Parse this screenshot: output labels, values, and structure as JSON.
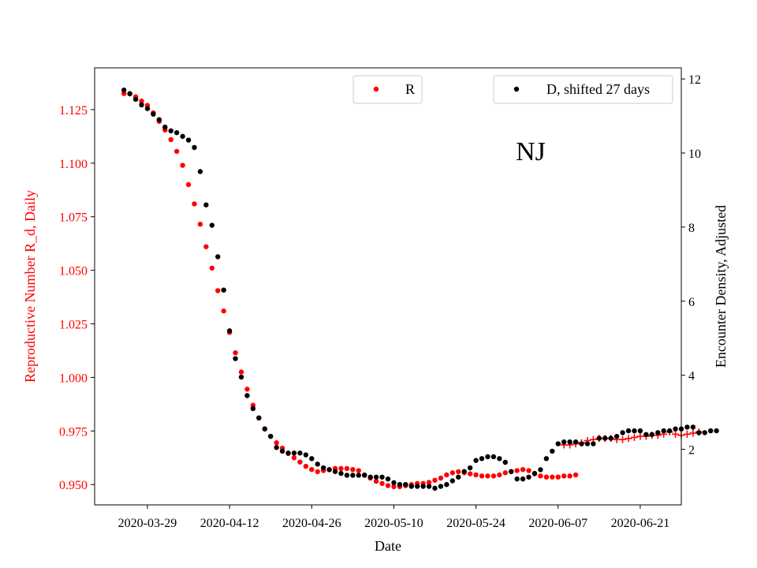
{
  "chart_data": {
    "type": "scatter",
    "annotation": "NJ",
    "xlabel": "Date",
    "ylabel_left": "Reproductive Number R_d, Daily",
    "ylabel_right": "Encounter Density, Adjusted",
    "x_tick_labels": [
      "2020-03-29",
      "2020-04-12",
      "2020-04-26",
      "2020-05-10",
      "2020-05-24",
      "2020-06-07",
      "2020-06-21"
    ],
    "x_range": [
      "2020-03-20",
      "2020-06-28"
    ],
    "y_left_range": [
      0.9405,
      1.1445
    ],
    "y_left_ticks": [
      "0.950",
      "0.975",
      "1.000",
      "1.025",
      "1.050",
      "1.075",
      "1.100",
      "1.125"
    ],
    "y_right_range": [
      0.5,
      12.3
    ],
    "y_right_ticks": [
      "2",
      "4",
      "6",
      "8",
      "10",
      "12"
    ],
    "grid": false,
    "colors": {
      "R": "#ff0000",
      "D": "#000000",
      "left_axis": "#ff0000",
      "right_axis": "#000000"
    },
    "legends": [
      {
        "label": "R",
        "placement": "top-center",
        "marker": "dot",
        "color": "#ff0000"
      },
      {
        "label": "D, shifted 27 days",
        "placement": "top-right",
        "marker": "dot",
        "color": "#000000"
      }
    ],
    "series": [
      {
        "name": "R",
        "axis": "left",
        "marker": "dot",
        "color": "#ff0000",
        "x_start": "2020-03-25",
        "values": [
          1.1325,
          1.1325,
          1.131,
          1.129,
          1.127,
          1.1235,
          1.1195,
          1.1155,
          1.111,
          1.1055,
          1.099,
          1.09,
          1.081,
          1.0715,
          1.061,
          1.051,
          1.0405,
          1.031,
          1.021,
          1.0115,
          1.0025,
          0.9945,
          0.987,
          0.981,
          0.976,
          0.9725,
          0.9695,
          0.967,
          0.9645,
          0.9625,
          0.9605,
          0.9585,
          0.957,
          0.956,
          0.9565,
          0.957,
          0.9575,
          0.9575,
          0.9575,
          0.957,
          0.9565,
          0.9545,
          0.953,
          0.9515,
          0.9505,
          0.9495,
          0.949,
          0.949,
          0.9495,
          0.95,
          0.9505,
          0.9505,
          0.951,
          0.952,
          0.953,
          0.9545,
          0.9555,
          0.956,
          0.9555,
          0.955,
          0.9545,
          0.954,
          0.954,
          0.954,
          0.9545,
          0.9555,
          0.956,
          0.9565,
          0.957,
          0.9565,
          0.955,
          0.954,
          0.9535,
          0.9535,
          0.9535,
          0.954,
          0.954,
          0.9545
        ]
      },
      {
        "name": "R (projected)",
        "axis": "left",
        "marker": "plus",
        "color": "#ff0000",
        "x_start": "2020-06-08",
        "values": [
          0.9685,
          0.9685,
          0.969,
          0.9695,
          0.9705,
          0.971,
          0.9715,
          0.9715,
          0.9715,
          0.971,
          0.971,
          0.9715,
          0.972,
          0.9725,
          0.9725,
          0.973,
          0.973,
          0.9735,
          0.9745,
          0.9735,
          0.973,
          0.9735,
          0.974,
          0.9745
        ]
      },
      {
        "name": "D, shifted 27 days",
        "axis": "right",
        "marker": "dot",
        "color": "#000000",
        "x_start": "2020-03-25",
        "values": [
          11.7,
          11.6,
          11.45,
          11.3,
          11.2,
          11.05,
          10.9,
          10.7,
          10.6,
          10.55,
          10.45,
          10.35,
          10.15,
          9.5,
          8.6,
          8.05,
          7.2,
          6.3,
          5.2,
          4.45,
          3.95,
          3.45,
          3.1,
          2.85,
          2.55,
          2.35,
          2.05,
          1.95,
          1.9,
          1.9,
          1.9,
          1.85,
          1.75,
          1.6,
          1.5,
          1.45,
          1.4,
          1.35,
          1.3,
          1.3,
          1.3,
          1.3,
          1.25,
          1.25,
          1.25,
          1.2,
          1.1,
          1.05,
          1.05,
          1.0,
          1.0,
          1.0,
          1.0,
          0.95,
          1.0,
          1.05,
          1.15,
          1.25,
          1.4,
          1.5,
          1.7,
          1.75,
          1.8,
          1.8,
          1.75,
          1.65,
          1.4,
          1.2,
          1.2,
          1.25,
          1.35,
          1.45,
          1.75,
          1.95,
          2.15,
          2.2,
          2.2,
          2.2,
          2.15,
          2.15,
          2.15,
          2.3,
          2.3,
          2.3,
          2.35,
          2.45,
          2.5,
          2.5,
          2.5,
          2.4,
          2.4,
          2.45,
          2.5,
          2.5,
          2.55,
          2.55,
          2.6,
          2.6,
          2.45,
          2.45,
          2.5,
          2.5
        ]
      }
    ]
  }
}
